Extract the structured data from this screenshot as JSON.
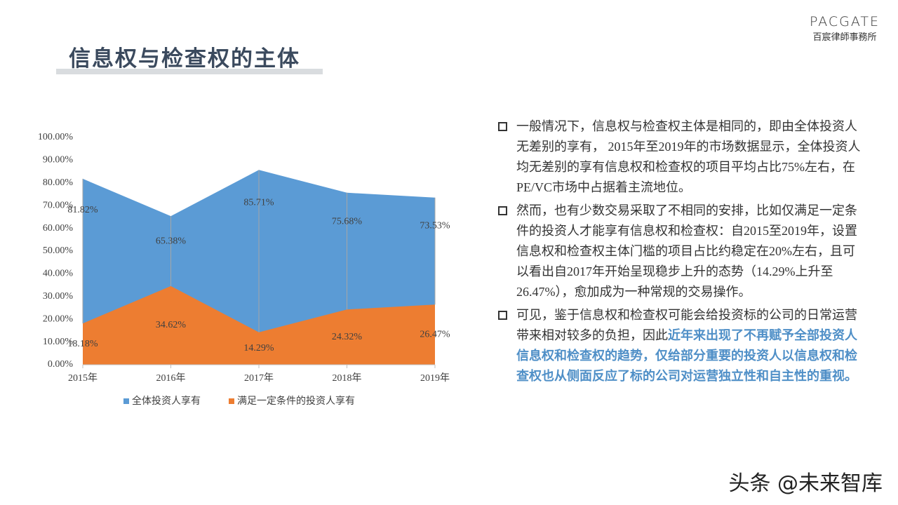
{
  "header": {
    "title": "信息权与检查权的主体"
  },
  "logo": {
    "name": "PACGATE",
    "subtitle": "百宸律師事務所"
  },
  "chart_data": {
    "type": "area",
    "categories": [
      "2015年",
      "2016年",
      "2017年",
      "2018年",
      "2019年"
    ],
    "series": [
      {
        "name": "全体投资人享有",
        "color": "#5b9bd5",
        "values": [
          81.82,
          65.38,
          85.71,
          75.68,
          73.53
        ],
        "value_labels": [
          "81.82%",
          "65.38%",
          "85.71%",
          "75.68%",
          "73.53%"
        ]
      },
      {
        "name": "满足一定条件的投资人享有",
        "color": "#ed7d31",
        "values": [
          18.18,
          34.62,
          14.29,
          24.32,
          26.47
        ],
        "value_labels": [
          "18.18%",
          "34.62%",
          "14.29%",
          "24.32%",
          "26.47%"
        ]
      }
    ],
    "ylim": [
      0,
      100
    ],
    "yticks": [
      {
        "value": 0,
        "label": "0.00%"
      },
      {
        "value": 10,
        "label": "10.00%"
      },
      {
        "value": 20,
        "label": "20.00%"
      },
      {
        "value": 30,
        "label": "30.00%"
      },
      {
        "value": 40,
        "label": "40.00%"
      },
      {
        "value": 50,
        "label": "50.00%"
      },
      {
        "value": 60,
        "label": "60.00%"
      },
      {
        "value": 70,
        "label": "70.00%"
      },
      {
        "value": 80,
        "label": "80.00%"
      },
      {
        "value": 90,
        "label": "90.00%"
      },
      {
        "value": 100,
        "label": "100.00%"
      }
    ],
    "legend": "bottom"
  },
  "bullets": [
    {
      "text": "一般情况下，信息权与检查权主体是相同的，即由全体投资人无差别的享有， 2015年至2019年的市场数据显示，全体投资人均无差别的享有信息权和检查权的项目平均占比75%左右，在PE/VC市场中占据着主流地位。"
    },
    {
      "text": "然而，也有少数交易采取了不相同的安排，比如仅满足一定条件的投资人才能享有信息权和检查权：自2015至2019年，设置信息权和检查权主体门槛的项目占比约稳定在20%左右，且可以看出自2017年开始呈现稳步上升的态势（14.29%上升至26.47%），愈加成为一种常规的交易操作。"
    },
    {
      "text": "可见，鉴于信息权和检查权可能会给投资标的公司的日常运营带来相对较多的负担，因此",
      "highlight": "近年来出现了不再赋予全部投资人信息权和检查权的趋势，仅给部分重要的投资人以信息权和检查权也从侧面反应了标的公司对运营独立性和自主性的重视。"
    }
  ],
  "watermark": "头条 @未来智库"
}
